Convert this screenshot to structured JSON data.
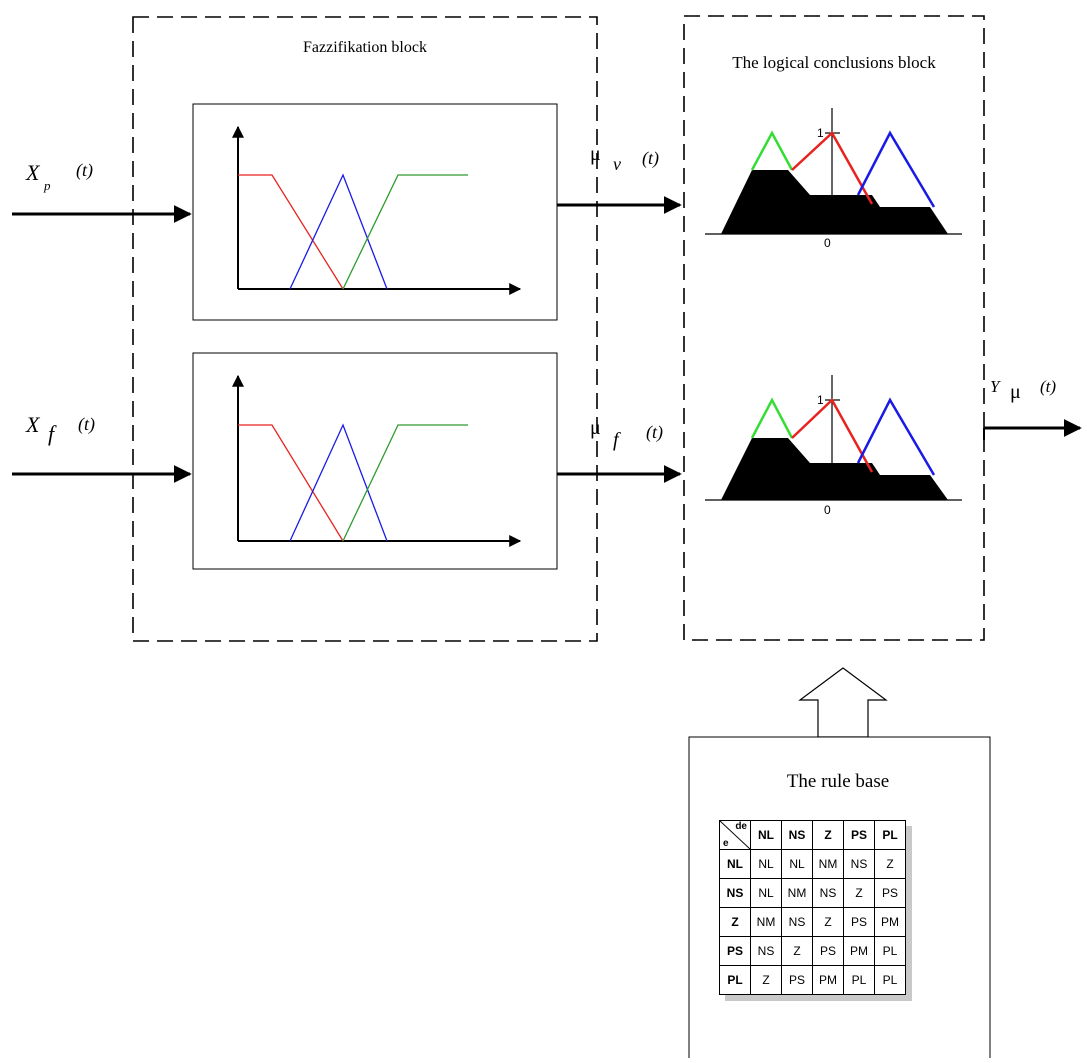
{
  "fuzzification": {
    "title": "Fazzifikation block",
    "input_p_main": "X",
    "input_p_sub": "p",
    "input_p_arg": "(t)",
    "input_f_main": "X",
    "input_f_sub": "f",
    "input_f_arg": "(t)"
  },
  "conclusions": {
    "title": "The logical conclusions block",
    "mu_v_main": "μ",
    "mu_v_sub": "v",
    "mu_v_arg": "(t)",
    "mu_f_main": "μ",
    "mu_f_sub": "f",
    "mu_f_arg": "(t)",
    "axis_one": "1",
    "axis_zero": "0",
    "output_main": "Y",
    "output_sub": "μ",
    "output_arg": "(t)"
  },
  "membership_colors": {
    "red": "#e8231f",
    "green": "#2f9a2f",
    "blue": "#1a1ae6",
    "bright_green": "#33dd33"
  },
  "rule_base": {
    "title": "The rule base",
    "corner_top": "de",
    "corner_bottom": "e",
    "columns": [
      "NL",
      "NS",
      "Z",
      "PS",
      "PL"
    ],
    "rows": [
      {
        "label": "NL",
        "cells": [
          "NL",
          "NL",
          "NM",
          "NS",
          "Z"
        ]
      },
      {
        "label": "NS",
        "cells": [
          "NL",
          "NM",
          "NS",
          "Z",
          "PS"
        ]
      },
      {
        "label": "Z",
        "cells": [
          "NM",
          "NS",
          "Z",
          "PS",
          "PM"
        ]
      },
      {
        "label": "PS",
        "cells": [
          "NS",
          "Z",
          "PS",
          "PM",
          "PL"
        ]
      },
      {
        "label": "PL",
        "cells": [
          "Z",
          "PS",
          "PM",
          "PL",
          "PL"
        ]
      }
    ]
  }
}
